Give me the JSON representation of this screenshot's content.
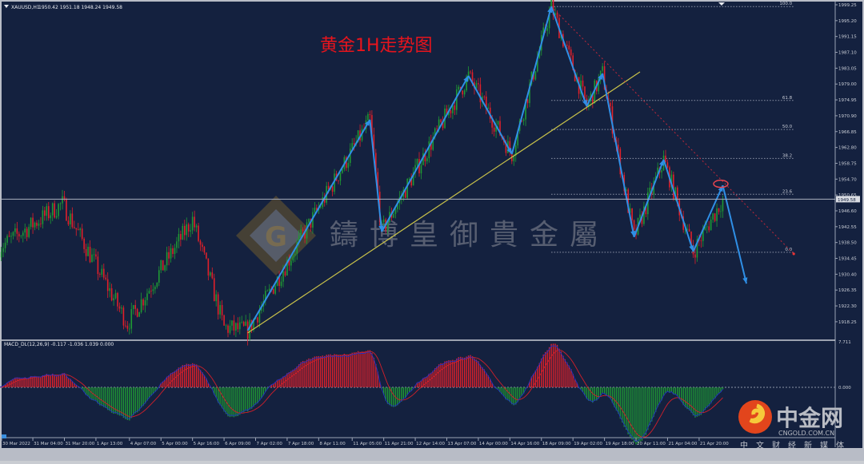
{
  "header": {
    "symbol": "XAUUSD,H1",
    "ohlc": "1950.42 1951.18 1948.24 1949.58"
  },
  "annotation_title": "黄金1H走势图",
  "watermark": {
    "logo_letter": "G",
    "text": "鑄博皇御貴金屬"
  },
  "brand_logo": {
    "name": "中金网",
    "domain": "CNGOLD.COM.CN",
    "tagline": "中文财经新媒体"
  },
  "colors": {
    "background": "#14213f",
    "bull": "#1f9a34",
    "bear": "#e0202a",
    "zigzag": "#2f8fe6",
    "trendline": "#c9c24a",
    "fib": "#8d95a8",
    "macd_signal": "#d11f2a",
    "macd_line": "#2030c0"
  },
  "chart_data": [
    {
      "type": "candlestick",
      "title": "XAUUSD,H1",
      "y_axis_ticks": [
        "1999.25",
        "1995.20",
        "1991.15",
        "1987.10",
        "1983.05",
        "1979.00",
        "1974.95",
        "1970.90",
        "1966.85",
        "1962.80",
        "1958.75",
        "1954.70",
        "1950.65",
        "1946.60",
        "1942.55",
        "1938.50",
        "1934.45",
        "1930.40",
        "1926.35",
        "1922.30",
        "1918.25"
      ],
      "ylim": [
        1918.25,
        1999.25
      ],
      "current_price": "1949.58",
      "x_axis_ticks": [
        "30 Mar 2022",
        "31 Mar 04:00",
        "31 Mar 20:00",
        "1 Apr 13:00",
        "4 Apr 07:00",
        "5 Apr 00:00",
        "5 Apr 16:00",
        "6 Apr 09:00",
        "7 Apr 02:00",
        "7 Apr 18:00",
        "8 Apr 11:00",
        "11 Apr 05:00",
        "11 Apr 21:00",
        "12 Apr 14:00",
        "13 Apr 07:00",
        "14 Apr 00:00",
        "14 Apr 16:00",
        "18 Apr 09:00",
        "19 Apr 02:00",
        "19 Apr 18:00",
        "20 Apr 11:00",
        "21 Apr 04:00",
        "21 Apr 20:00"
      ],
      "price_path": [
        [
          "30 Mar 10:00",
          1937.2
        ],
        [
          "31 Mar 19:00",
          1948.4
        ],
        [
          "4 Apr 06:00",
          1917.8
        ],
        [
          "5 Apr 16:00",
          1944.4
        ],
        [
          "6 Apr 09:00",
          1916.8
        ],
        [
          "6 Apr 21:00",
          1916.0
        ],
        [
          "11 Apr 14:00",
          1969.9
        ],
        [
          "11 Apr 20:00",
          1941.3
        ],
        [
          "13 Apr 18:00",
          1981.1
        ],
        [
          "14 Apr 17:00",
          1961.1
        ],
        [
          "18 Apr 14:00",
          1998.8
        ],
        [
          "19 Apr 09:00",
          1973.3
        ],
        [
          "19 Apr 17:00",
          1981.7
        ],
        [
          "20 Apr 10:00",
          1939.9
        ],
        [
          "21 Apr 02:00",
          1959.7
        ],
        [
          "21 Apr 17:00",
          1936.2
        ],
        [
          "22 Apr 09:00",
          1949.58
        ]
      ],
      "zigzag": [
        [
          "6 Apr 21:00",
          1916.0
        ],
        [
          "11 Apr 14:00",
          1969.9
        ],
        [
          "11 Apr 20:00",
          1941.3
        ],
        [
          "13 Apr 18:00",
          1981.1
        ],
        [
          "14 Apr 17:00",
          1961.1
        ],
        [
          "18 Apr 14:00",
          1998.8
        ],
        [
          "19 Apr 09:00",
          1973.3
        ],
        [
          "19 Apr 17:00",
          1981.7
        ],
        [
          "20 Apr 10:00",
          1939.9
        ],
        [
          "21 Apr 02:00",
          1959.7
        ],
        [
          "21 Apr 17:00",
          1936.2
        ],
        [
          "22 Apr 09:00",
          1953.1
        ],
        [
          "22 Apr 21:00",
          1928.0
        ]
      ],
      "trendline": [
        [
          "6 Apr 21:00",
          1915.4
        ],
        [
          "20 Apr 13:00",
          1982.1
        ]
      ],
      "resistance_line": [
        [
          "18 Apr 14:00",
          1998.8
        ],
        [
          "25 Apr 22:00",
          1935.6
        ]
      ],
      "highlight_circle": [
        "22 Apr 08:00",
        1953.5
      ],
      "fibonacci": {
        "high": 1998.8,
        "low": 1936.0,
        "start": "18 Apr 14:00",
        "end": "25 Apr 22:00",
        "levels": [
          {
            "label": "100.0",
            "ratio": 1.0
          },
          {
            "label": "61.8",
            "ratio": 0.618
          },
          {
            "label": "50.0",
            "ratio": 0.5
          },
          {
            "label": "38.2",
            "ratio": 0.382
          },
          {
            "label": "23.6",
            "ratio": 0.236
          },
          {
            "label": "0.0",
            "ratio": 0.0
          }
        ]
      }
    },
    {
      "type": "bar",
      "title": "MACD_DL(12,26,9) -0.117 -1.036 1.039 0.000",
      "params": [
        12,
        26,
        9
      ],
      "values_shown": [
        "-0.117",
        "-1.036",
        "1.039",
        "0.000"
      ],
      "y_axis_ticks": [
        "7.711",
        "0.000"
      ],
      "ylim_top": 7.711
    }
  ]
}
